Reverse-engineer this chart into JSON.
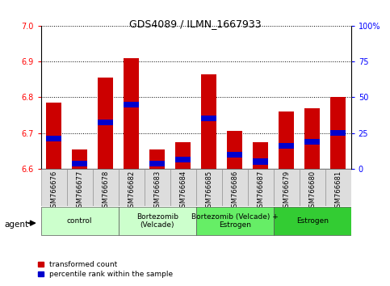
{
  "title": "GDS4089 / ILMN_1667933",
  "samples": [
    "GSM766676",
    "GSM766677",
    "GSM766678",
    "GSM766682",
    "GSM766683",
    "GSM766684",
    "GSM766685",
    "GSM766686",
    "GSM766687",
    "GSM766679",
    "GSM766680",
    "GSM766681"
  ],
  "red_values": [
    6.785,
    6.655,
    6.855,
    6.91,
    6.655,
    6.675,
    6.865,
    6.705,
    6.675,
    6.76,
    6.77,
    6.8
  ],
  "blue_values": [
    6.685,
    6.615,
    6.73,
    6.78,
    6.615,
    6.625,
    6.74,
    6.64,
    6.62,
    6.665,
    6.675,
    6.7
  ],
  "ymin": 6.6,
  "ymax": 7.0,
  "yticks": [
    6.6,
    6.7,
    6.8,
    6.9,
    7.0
  ],
  "bar_color_red": "#cc0000",
  "bar_color_blue": "#0000cc",
  "bar_width": 0.6,
  "groups_info": [
    {
      "label": "control",
      "indices": [
        0,
        1,
        2
      ],
      "color": "#ccffcc"
    },
    {
      "label": "Bortezomib\n(Velcade)",
      "indices": [
        3,
        4,
        5
      ],
      "color": "#ccffcc"
    },
    {
      "label": "Bortezomib (Velcade) +\nEstrogen",
      "indices": [
        6,
        7,
        8
      ],
      "color": "#66ee66"
    },
    {
      "label": "Estrogen",
      "indices": [
        9,
        10,
        11
      ],
      "color": "#33cc33"
    }
  ],
  "xtick_bg": "#cccccc",
  "legend_labels": [
    "transformed count",
    "percentile rank within the sample"
  ]
}
